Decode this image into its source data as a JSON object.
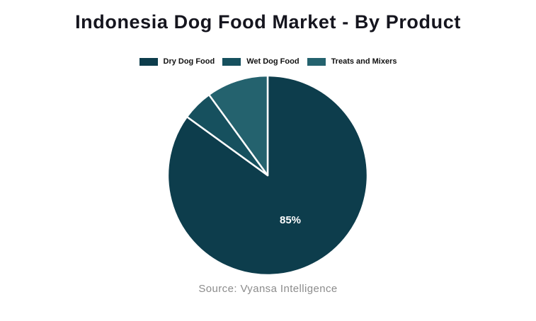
{
  "title": "Indonesia Dog Food Market - By Product",
  "source": "Source: Vyansa Intelligence",
  "colors": {
    "background": "#ffffff",
    "title_text": "#15151e",
    "legend_text": "#111111",
    "source_text": "#8c8c8c",
    "label_text": "#ffffff",
    "slice_divider": "#ffffff"
  },
  "chart_data": {
    "type": "pie",
    "title": "Indonesia Dog Food Market - By Product",
    "units": "percent",
    "start_position": "top",
    "direction": "clockwise",
    "legend_position": "top",
    "slices": [
      {
        "name": "Dry Dog Food",
        "value": 85,
        "label": "85%",
        "show_label": true,
        "color": "#0d3d4c"
      },
      {
        "name": "Wet Dog Food",
        "value": 5,
        "label": "",
        "show_label": false,
        "color": "#16505e"
      },
      {
        "name": "Treats and Mixers",
        "value": 10,
        "label": "",
        "show_label": false,
        "color": "#24626e"
      }
    ]
  }
}
